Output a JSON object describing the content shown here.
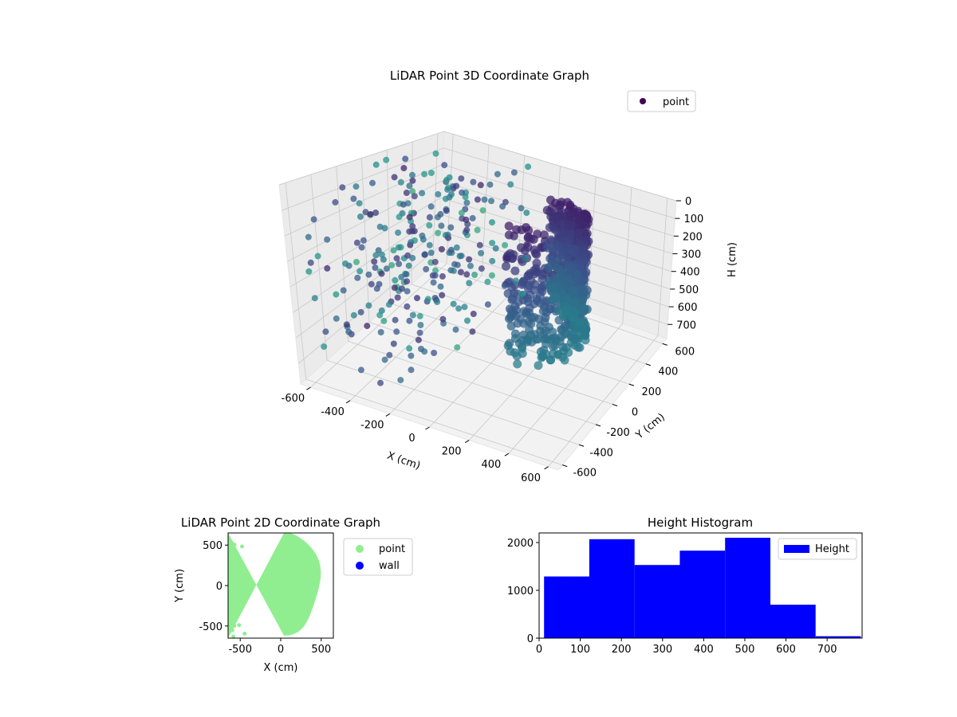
{
  "chart_data": [
    {
      "type": "scatter3d",
      "title": "LiDAR Point 3D Coordinate Graph",
      "xlabel": "X (cm)",
      "ylabel": "Y (cm)",
      "zlabel": "H (cm)",
      "xlim": [
        -650,
        650
      ],
      "ylim": [
        -650,
        650
      ],
      "zlim": [
        0,
        780
      ],
      "z_inverted": true,
      "xticks": [
        -600,
        -400,
        -200,
        0,
        200,
        400,
        600
      ],
      "yticks": [
        -600,
        -400,
        -200,
        0,
        200,
        400,
        600
      ],
      "zticks": [
        0,
        100,
        200,
        300,
        400,
        500,
        600,
        700
      ],
      "colormap": "viridis",
      "legend": {
        "entries": [
          {
            "label": "point",
            "color": "#440154"
          }
        ],
        "placement": "top-right"
      }
    },
    {
      "type": "scatter",
      "title": "LiDAR Point 2D Coordinate Graph",
      "xlabel": "X (cm)",
      "ylabel": "Y (cm)",
      "xlim": [
        -650,
        650
      ],
      "ylim": [
        -650,
        650
      ],
      "xticks": [
        -500,
        0,
        500
      ],
      "yticks": [
        -500,
        0,
        500
      ],
      "series": [
        {
          "name": "point",
          "color": "#90ee90"
        },
        {
          "name": "wall",
          "color": "#0000ff"
        }
      ],
      "legend_placement": "outside-right"
    },
    {
      "type": "bar",
      "title": "Height Histogram",
      "xlabel": "",
      "ylabel": "",
      "bins": [
        {
          "x0": 12,
          "x1": 122,
          "count": 1290
        },
        {
          "x0": 122,
          "x1": 232,
          "count": 2070
        },
        {
          "x0": 232,
          "x1": 342,
          "count": 1530
        },
        {
          "x0": 342,
          "x1": 452,
          "count": 1830
        },
        {
          "x0": 452,
          "x1": 562,
          "count": 2100
        },
        {
          "x0": 562,
          "x1": 672,
          "count": 700
        },
        {
          "x0": 672,
          "x1": 782,
          "count": 40
        }
      ],
      "xlim": [
        0,
        785
      ],
      "ylim": [
        0,
        2200
      ],
      "xticks": [
        0,
        100,
        200,
        300,
        400,
        500,
        600,
        700
      ],
      "yticks": [
        0,
        1000,
        2000
      ],
      "color": "#0000ff",
      "legend": {
        "entries": [
          {
            "label": "Height",
            "color": "#0000ff"
          }
        ],
        "placement": "top-right"
      }
    }
  ]
}
